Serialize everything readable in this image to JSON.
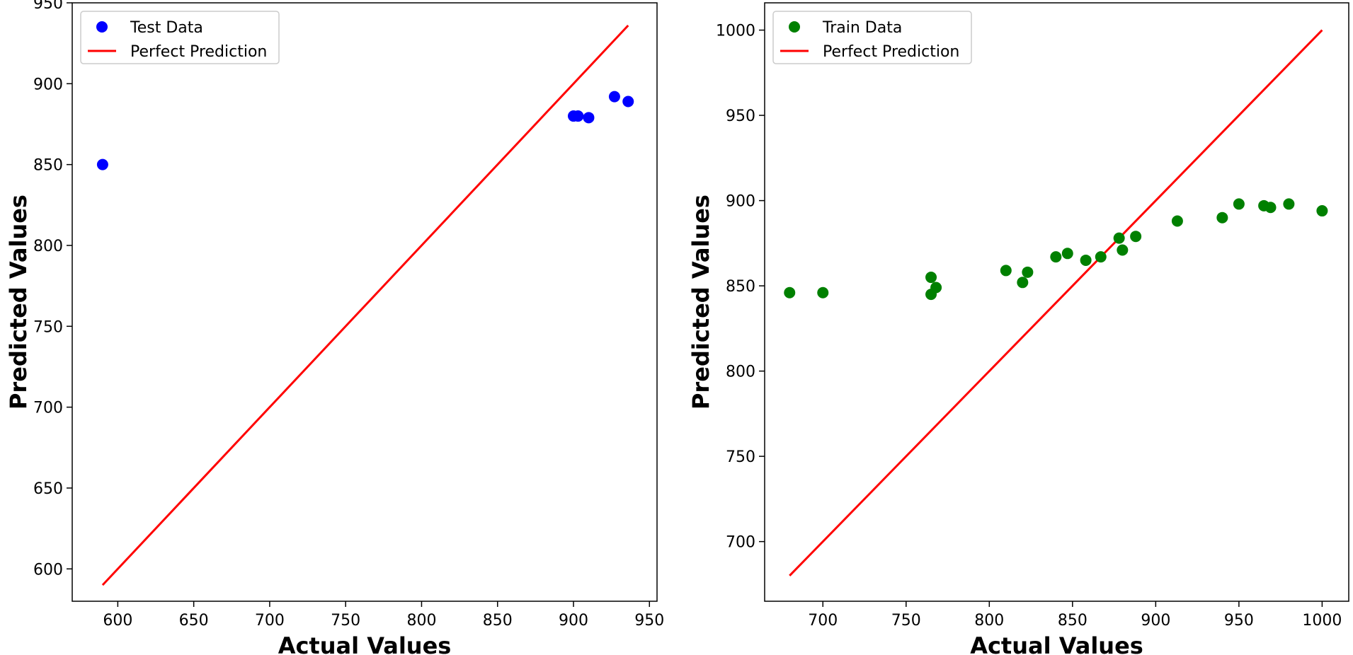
{
  "colors": {
    "test_points": "#0000ff",
    "train_points": "#008000",
    "perfect_line": "#ff0000",
    "axes": "#000000",
    "legend_border": "#cccccc"
  },
  "chart_data": [
    {
      "type": "scatter",
      "xlabel": "Actual Values",
      "ylabel": "Predicted Values",
      "xlim": [
        570,
        955
      ],
      "ylim": [
        580,
        950
      ],
      "xticks": [
        600,
        650,
        700,
        750,
        800,
        850,
        900,
        950
      ],
      "yticks": [
        600,
        650,
        700,
        750,
        800,
        850,
        900,
        950
      ],
      "legend_position": "top-left",
      "series": [
        {
          "name": "Test Data",
          "kind": "scatter",
          "color": "#0000ff",
          "points": [
            [
              590,
              850
            ],
            [
              900,
              880
            ],
            [
              903,
              880
            ],
            [
              910,
              879
            ],
            [
              927,
              892
            ],
            [
              936,
              889
            ]
          ]
        },
        {
          "name": "Perfect Prediction",
          "kind": "line",
          "color": "#ff0000",
          "points": [
            [
              590,
              590
            ],
            [
              936,
              936
            ]
          ]
        }
      ]
    },
    {
      "type": "scatter",
      "xlabel": "Actual Values",
      "ylabel": "Predicted Values",
      "xlim": [
        665,
        1016
      ],
      "ylim": [
        665,
        1016
      ],
      "xticks": [
        700,
        750,
        800,
        850,
        900,
        950,
        1000
      ],
      "yticks": [
        700,
        750,
        800,
        850,
        900,
        950,
        1000
      ],
      "legend_position": "top-left",
      "series": [
        {
          "name": "Train Data",
          "kind": "scatter",
          "color": "#008000",
          "points": [
            [
              680,
              846
            ],
            [
              700,
              846
            ],
            [
              765,
              845
            ],
            [
              765,
              855
            ],
            [
              768,
              849
            ],
            [
              810,
              859
            ],
            [
              820,
              852
            ],
            [
              823,
              858
            ],
            [
              840,
              867
            ],
            [
              847,
              869
            ],
            [
              858,
              865
            ],
            [
              867,
              867
            ],
            [
              878,
              878
            ],
            [
              880,
              871
            ],
            [
              888,
              879
            ],
            [
              913,
              888
            ],
            [
              940,
              890
            ],
            [
              950,
              898
            ],
            [
              965,
              897
            ],
            [
              969,
              896
            ],
            [
              980,
              898
            ],
            [
              1000,
              894
            ]
          ]
        },
        {
          "name": "Perfect Prediction",
          "kind": "line",
          "color": "#ff0000",
          "points": [
            [
              680,
              680
            ],
            [
              1000,
              1000
            ]
          ]
        }
      ]
    }
  ]
}
